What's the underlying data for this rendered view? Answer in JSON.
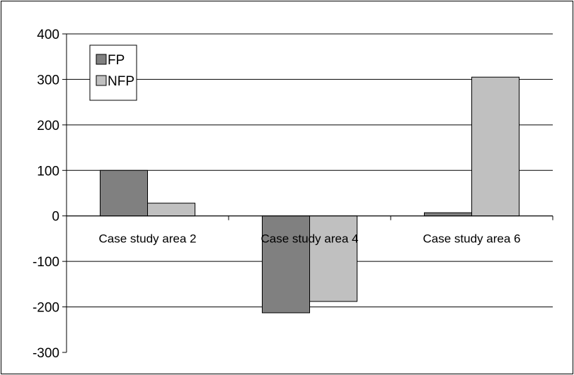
{
  "chart_data": {
    "type": "bar",
    "title": "",
    "xlabel": "",
    "ylabel": "",
    "categories": [
      "Case study area 2",
      "Case study area 4",
      "Case study area 6"
    ],
    "series": [
      {
        "name": "FP",
        "values": [
          100,
          -213,
          7
        ],
        "color": "#808080"
      },
      {
        "name": "NFP",
        "values": [
          28,
          -188,
          305
        ],
        "color": "#c0c0c0"
      }
    ],
    "ylim": [
      -300,
      400
    ],
    "yticks": [
      400,
      300,
      200,
      100,
      0,
      -100,
      -200,
      -300
    ],
    "ytick_labels": [
      "400",
      "300",
      "200",
      "100",
      "0",
      "-100",
      "-200",
      "-300"
    ],
    "grid": true,
    "legend_position": "top-left"
  }
}
